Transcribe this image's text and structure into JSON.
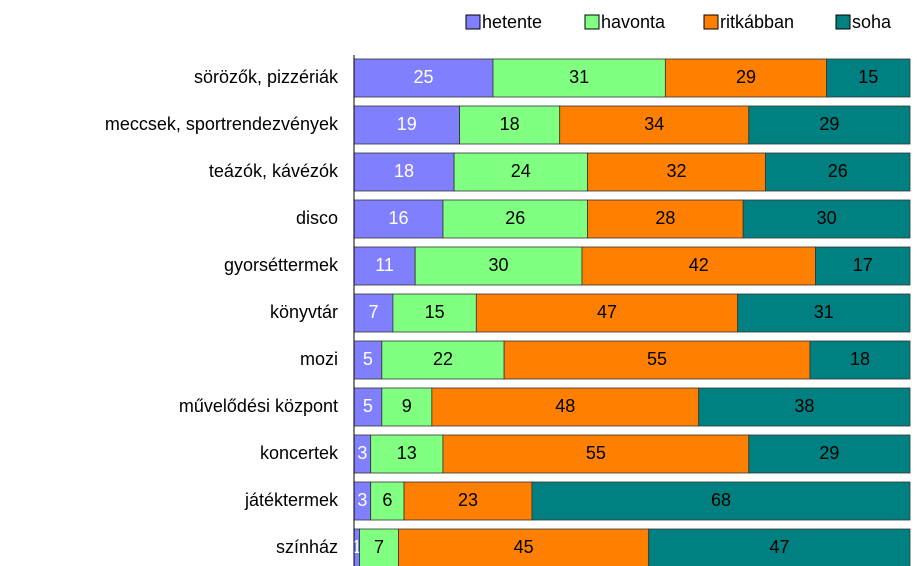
{
  "chart_data": {
    "type": "stacked-barh",
    "categories": [
      "sörözők, pizzériák",
      "meccsek, sportrendezvények",
      "teázók, kávézók",
      "disco",
      "gyorséttermek",
      "könyvtár",
      "mozi",
      "művelődési központ",
      "koncertek",
      "játéktermek",
      "színház"
    ],
    "series": [
      {
        "name": "hetente",
        "color": "#8080ff",
        "label_color": "#ffffff",
        "values": [
          25,
          19,
          18,
          16,
          11,
          7,
          5,
          5,
          3,
          3,
          1
        ]
      },
      {
        "name": "havonta",
        "color": "#80ff80",
        "label_color": "#000000",
        "values": [
          31,
          18,
          24,
          26,
          30,
          15,
          22,
          9,
          13,
          6,
          7
        ]
      },
      {
        "name": "ritkábban",
        "color": "#ff8000",
        "label_color": "#000000",
        "values": [
          29,
          34,
          32,
          28,
          42,
          47,
          55,
          48,
          55,
          23,
          45
        ]
      },
      {
        "name": "soha",
        "color": "#008080",
        "label_color": "#000000",
        "values": [
          15,
          29,
          26,
          30,
          17,
          31,
          18,
          38,
          29,
          68,
          47
        ]
      }
    ],
    "xlim": [
      0,
      100
    ],
    "legend": "top-right"
  }
}
